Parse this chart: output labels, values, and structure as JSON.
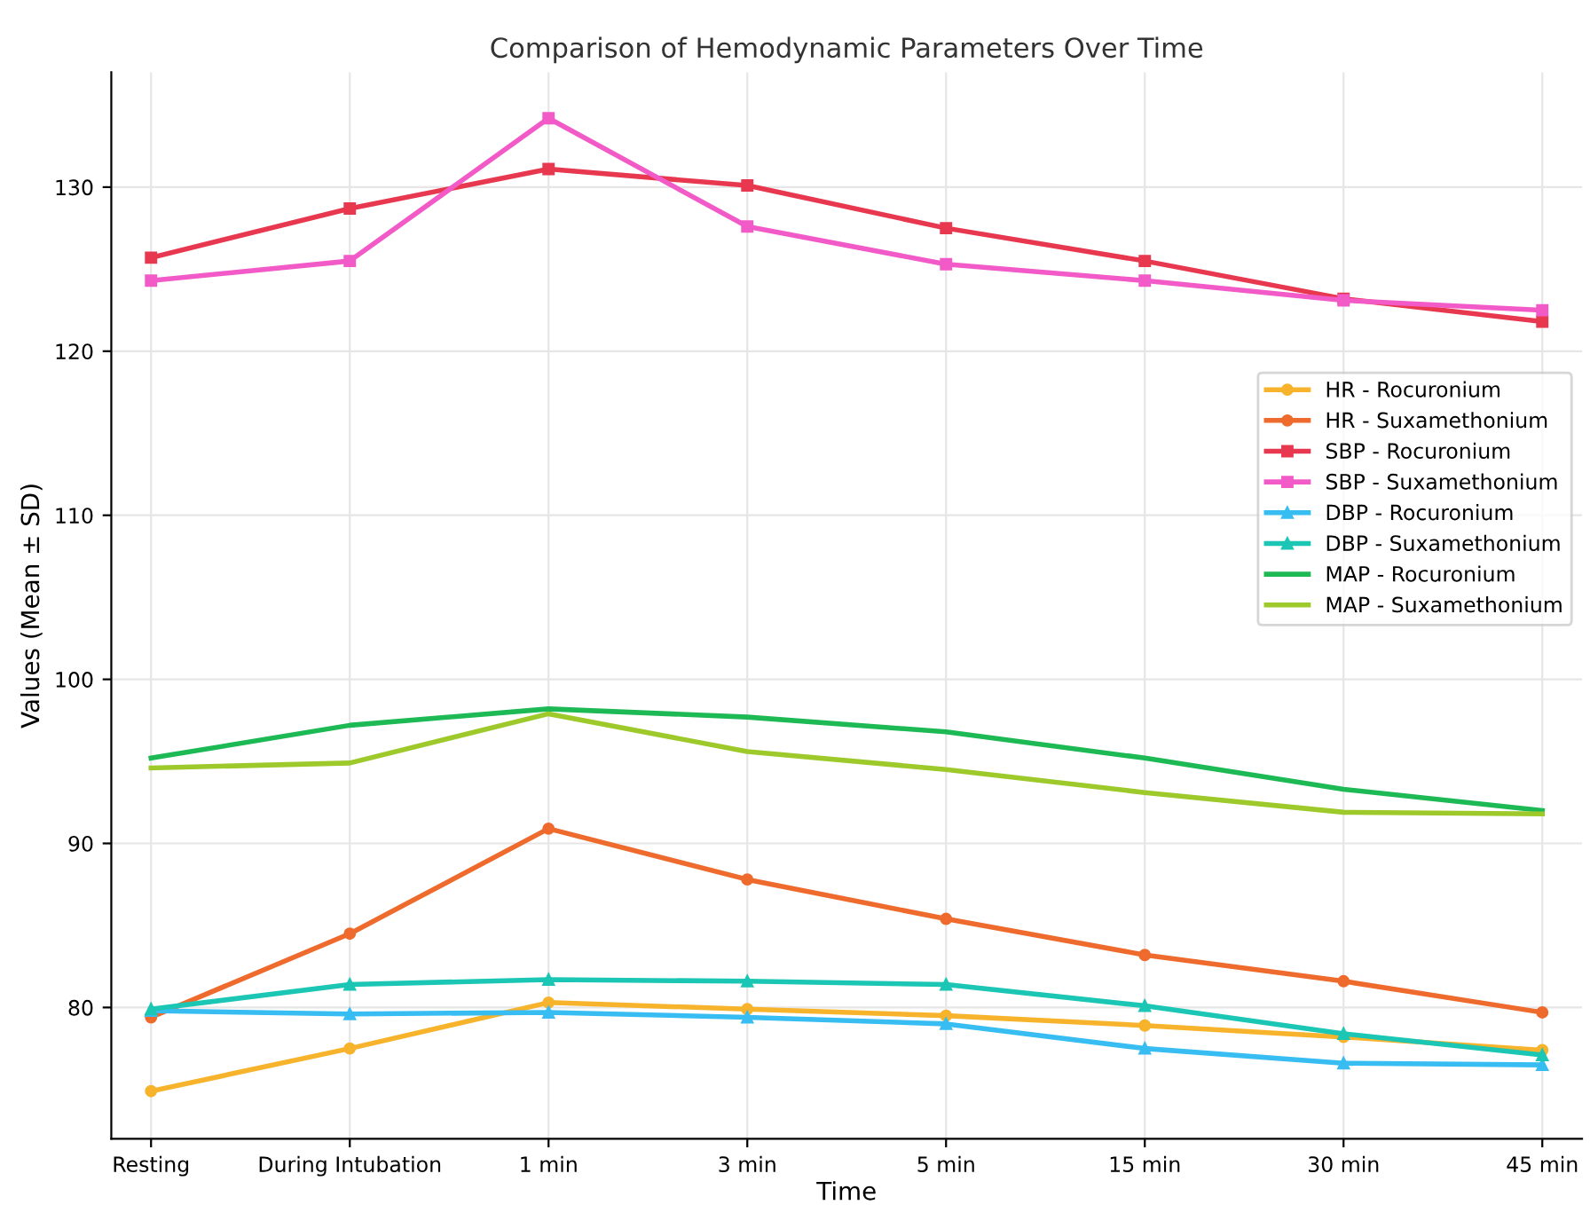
{
  "chart_data": {
    "type": "line",
    "title": "Comparison of Hemodynamic Parameters Over Time",
    "xlabel": "Time",
    "ylabel": "Values (Mean ± SD)",
    "categories": [
      "Resting",
      "During Intubation",
      "1 min",
      "3 min",
      "5 min",
      "15 min",
      "30 min",
      "45 min"
    ],
    "ylim": [
      72,
      137
    ],
    "yticks": [
      80,
      90,
      100,
      110,
      120,
      130
    ],
    "grid": true,
    "legend": "right",
    "series": [
      {
        "name": "HR - Rocuronium",
        "color": "#f7b32b",
        "marker": "circle",
        "values": [
          74.9,
          77.5,
          80.3,
          79.9,
          79.5,
          78.9,
          78.2,
          77.4
        ]
      },
      {
        "name": "HR - Suxamethonium",
        "color": "#ee6a2d",
        "marker": "circle",
        "values": [
          79.4,
          84.5,
          90.9,
          87.8,
          85.4,
          83.2,
          81.6,
          79.7
        ]
      },
      {
        "name": "SBP - Rocuronium",
        "color": "#e8384f",
        "marker": "square",
        "values": [
          125.7,
          128.7,
          131.1,
          130.1,
          127.5,
          125.5,
          123.2,
          121.8
        ]
      },
      {
        "name": "SBP - Suxamethonium",
        "color": "#f25ac8",
        "marker": "square",
        "values": [
          124.3,
          125.5,
          134.2,
          127.6,
          125.3,
          124.3,
          123.1,
          122.5
        ]
      },
      {
        "name": "DBP - Rocuronium",
        "color": "#37bdf2",
        "marker": "triangle",
        "values": [
          79.8,
          79.6,
          79.7,
          79.4,
          79.0,
          77.5,
          76.6,
          76.5
        ]
      },
      {
        "name": "DBP - Suxamethonium",
        "color": "#1bc6b4",
        "marker": "triangle",
        "values": [
          79.9,
          81.4,
          81.7,
          81.6,
          81.4,
          80.1,
          78.4,
          77.1
        ]
      },
      {
        "name": "MAP - Rocuronium",
        "color": "#1db954",
        "marker": "none",
        "values": [
          95.2,
          97.2,
          98.2,
          97.7,
          96.8,
          95.2,
          93.3,
          92.0
        ]
      },
      {
        "name": "MAP - Suxamethonium",
        "color": "#9dc92b",
        "marker": "none",
        "values": [
          94.6,
          94.9,
          97.9,
          95.6,
          94.5,
          93.1,
          91.9,
          91.8
        ]
      }
    ]
  }
}
